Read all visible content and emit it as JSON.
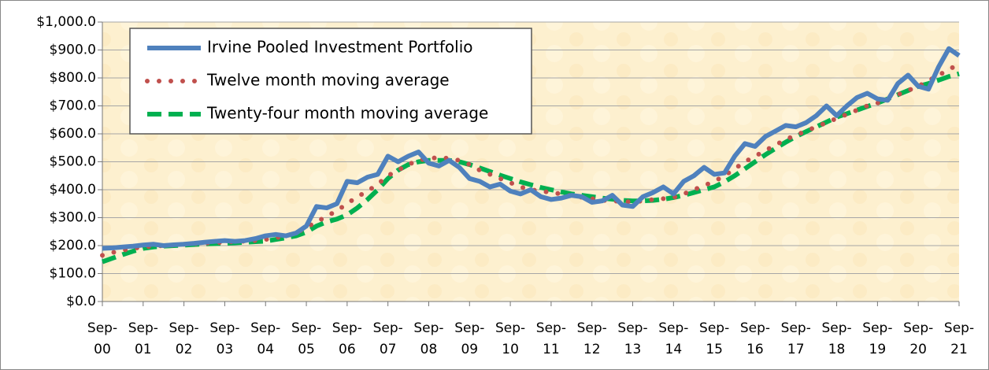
{
  "chart_data": {
    "type": "line",
    "categories": [
      "Sep-00",
      null,
      null,
      null,
      "Sep-01",
      null,
      null,
      null,
      "Sep-02",
      null,
      null,
      null,
      "Sep-03",
      null,
      null,
      null,
      "Sep-04",
      null,
      null,
      null,
      "Sep-05",
      null,
      null,
      null,
      "Sep-06",
      null,
      null,
      null,
      "Sep-07",
      null,
      null,
      null,
      "Sep-08",
      null,
      null,
      null,
      "Sep-09",
      null,
      null,
      null,
      "Sep-10",
      null,
      null,
      null,
      "Sep-11",
      null,
      null,
      null,
      "Sep-12",
      null,
      null,
      null,
      "Sep-13",
      null,
      null,
      null,
      "Sep-14",
      null,
      null,
      null,
      "Sep-15",
      null,
      null,
      null,
      "Sep-16",
      null,
      null,
      null,
      "Sep-17",
      null,
      null,
      null,
      "Sep-18",
      null,
      null,
      null,
      "Sep-19",
      null,
      null,
      null,
      "Sep-20",
      null,
      null,
      null,
      "Sep-21"
    ],
    "series": [
      {
        "name": "Irvine Pooled Investment Portfolio",
        "color": "#4f81bd",
        "style": "solid",
        "values": [
          190,
          192,
          195,
          198,
          202,
          205,
          200,
          203,
          205,
          208,
          212,
          215,
          218,
          215,
          218,
          225,
          235,
          240,
          235,
          245,
          270,
          340,
          335,
          350,
          430,
          425,
          445,
          455,
          520,
          500,
          520,
          535,
          495,
          485,
          505,
          480,
          440,
          430,
          410,
          420,
          395,
          385,
          400,
          375,
          365,
          370,
          380,
          375,
          355,
          360,
          380,
          345,
          340,
          375,
          390,
          410,
          385,
          430,
          450,
          480,
          455,
          460,
          520,
          565,
          555,
          590,
          610,
          630,
          625,
          640,
          665,
          700,
          665,
          700,
          730,
          745,
          725,
          720,
          780,
          810,
          770,
          760,
          840,
          905,
          880
        ]
      },
      {
        "name": "Twelve month moving average",
        "color": "#c0504d",
        "style": "dotted",
        "values": [
          165,
          175,
          183,
          190,
          195,
          198,
          200,
          202,
          205,
          207,
          208,
          210,
          212,
          214,
          216,
          218,
          222,
          228,
          235,
          245,
          265,
          285,
          305,
          325,
          350,
          375,
          395,
          420,
          450,
          470,
          490,
          505,
          512,
          515,
          512,
          505,
          490,
          470,
          455,
          440,
          425,
          410,
          400,
          395,
          390,
          385,
          378,
          373,
          368,
          362,
          360,
          358,
          356,
          360,
          365,
          368,
          372,
          385,
          400,
          415,
          430,
          450,
          475,
          500,
          520,
          540,
          560,
          580,
          595,
          610,
          625,
          640,
          655,
          670,
          685,
          700,
          710,
          725,
          740,
          755,
          770,
          790,
          810,
          830,
          850
        ]
      },
      {
        "name": "Twenty-four month moving average",
        "color": "#00b050",
        "style": "dashed",
        "values": [
          142,
          155,
          168,
          180,
          190,
          195,
          198,
          200,
          202,
          204,
          206,
          207,
          208,
          210,
          212,
          214,
          216,
          222,
          228,
          235,
          248,
          270,
          285,
          295,
          310,
          335,
          365,
          400,
          440,
          470,
          490,
          500,
          505,
          505,
          505,
          500,
          490,
          478,
          465,
          452,
          440,
          428,
          418,
          408,
          400,
          392,
          385,
          380,
          375,
          370,
          366,
          362,
          360,
          360,
          362,
          366,
          372,
          380,
          390,
          400,
          410,
          428,
          450,
          475,
          500,
          525,
          548,
          570,
          590,
          608,
          625,
          642,
          660,
          672,
          685,
          698,
          710,
          725,
          740,
          755,
          770,
          780,
          792,
          805,
          815
        ]
      }
    ],
    "ylim": [
      0,
      1000
    ],
    "yticks": [
      {
        "value": 0,
        "label": "$0.0"
      },
      {
        "value": 100,
        "label": "$100.0"
      },
      {
        "value": 200,
        "label": "$200.0"
      },
      {
        "value": 300,
        "label": "$300.0"
      },
      {
        "value": 400,
        "label": "$400.0"
      },
      {
        "value": 500,
        "label": "$500.0"
      },
      {
        "value": 600,
        "label": "$600.0"
      },
      {
        "value": 700,
        "label": "$700.0"
      },
      {
        "value": 800,
        "label": "$800.0"
      },
      {
        "value": 900,
        "label": "$900.0"
      },
      {
        "value": 1000,
        "label": "$1,000.0"
      }
    ],
    "grid": true
  }
}
